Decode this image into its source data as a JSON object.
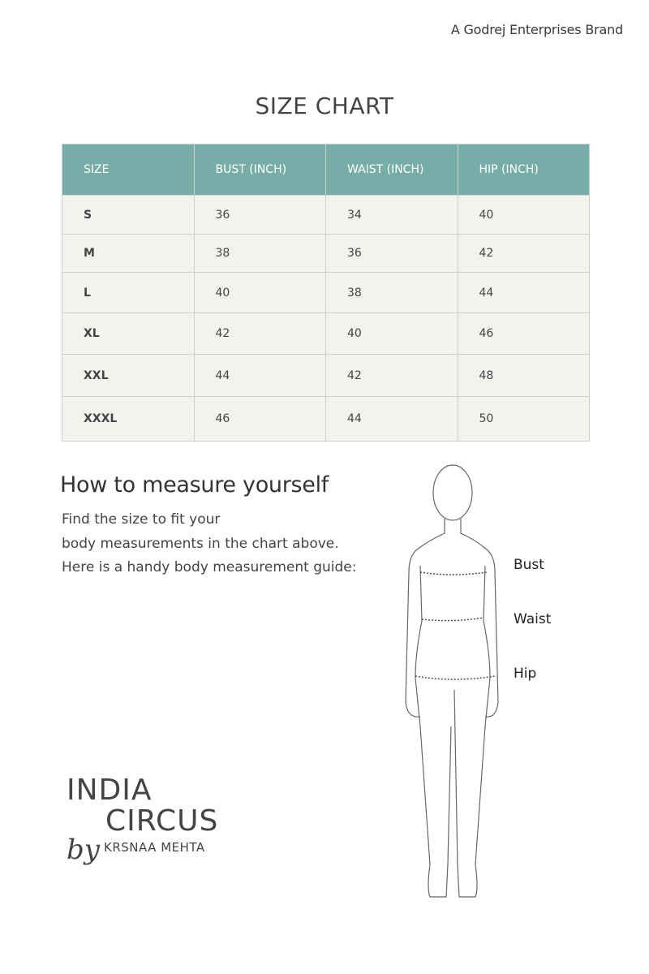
{
  "brand_note": "A Godrej Enterprises Brand",
  "title": "SIZE CHART",
  "table": {
    "headers": [
      "SIZE",
      "BUST (INCH)",
      "WAIST (INCH)",
      "HIP (INCH)"
    ],
    "rows": [
      [
        "S",
        "36",
        "34",
        "40"
      ],
      [
        "M",
        "38",
        "36",
        "42"
      ],
      [
        "L",
        "40",
        "38",
        "44"
      ],
      [
        "XL",
        "42",
        "40",
        "46"
      ],
      [
        "XXL",
        "44",
        "42",
        "48"
      ],
      [
        "XXXL",
        "46",
        "44",
        "50"
      ]
    ]
  },
  "guide": {
    "heading": "How to measure yourself",
    "lines": [
      "Find the size to fit your",
      "body measurements in the chart above.",
      "Here is a handy body measurement guide:"
    ],
    "labels": [
      "Bust",
      "Waist",
      "Hip"
    ]
  },
  "logo": {
    "line1": "INDIA",
    "line2": "CIRCUS",
    "by": "by",
    "line3": "KRSNAA MEHTA"
  },
  "colors": {
    "header_bg": "#76ada8",
    "row_bg": "#f3f2ef"
  }
}
